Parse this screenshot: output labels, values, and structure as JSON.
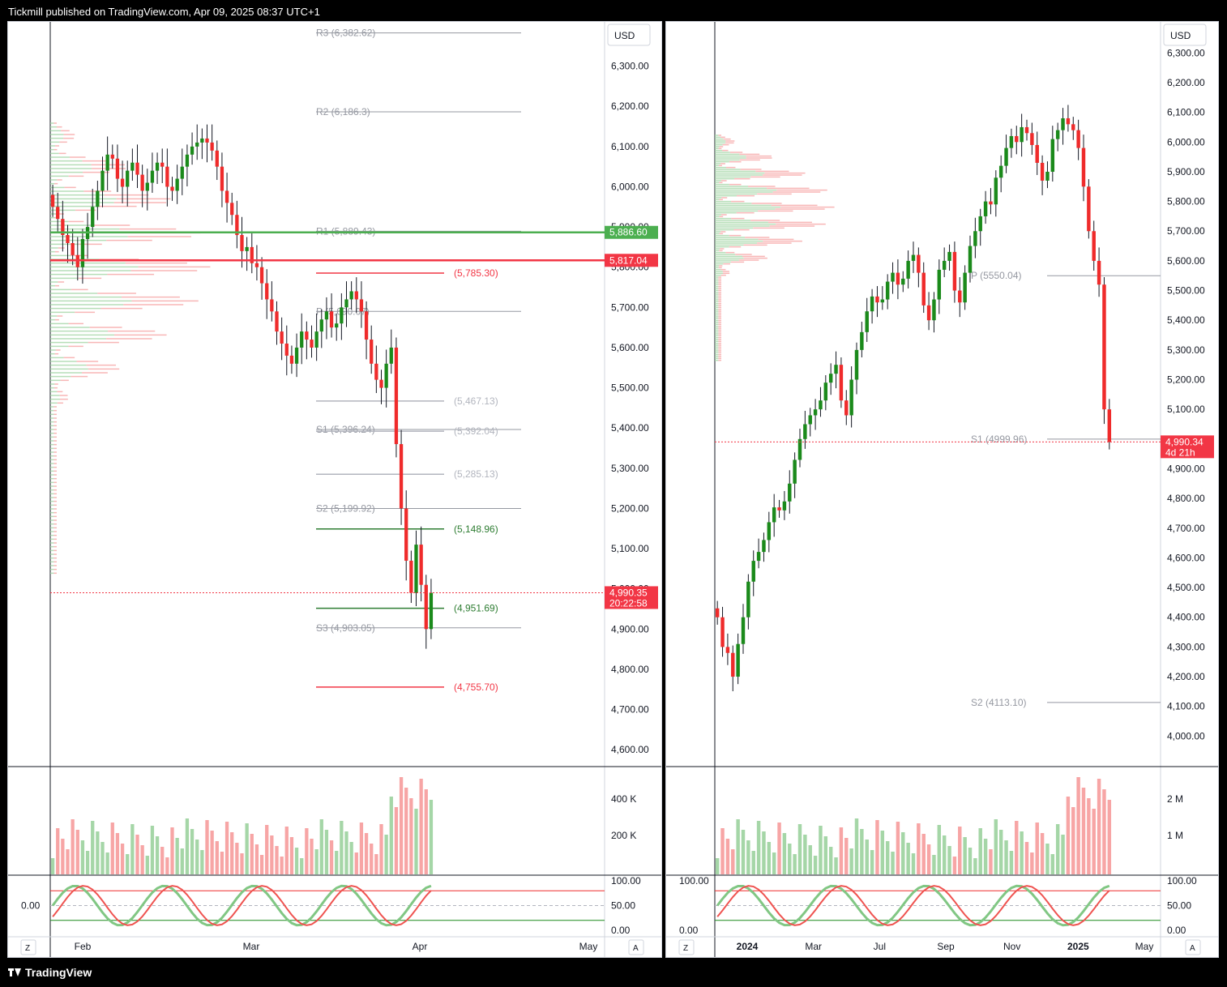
{
  "header": {
    "text": "Tickmill published on TradingView.com, Apr 09, 2025 08:37 UTC+1"
  },
  "footer": {
    "brand": "TradingView"
  },
  "colors": {
    "up": "#089981",
    "upCandle": "#1b8a1b",
    "down": "#f23645",
    "red": "#ef2b2b",
    "green": "#4caf50",
    "blue": "#2962ff",
    "grid": "#e0e3eb",
    "text": "#131722"
  },
  "chart_data": [
    {
      "type": "candlestick",
      "currency": "USD",
      "timeframe_labels": [
        "Feb",
        "Mar",
        "Apr",
        "May"
      ],
      "y_ticks": [
        "6,300.00",
        "6,200.00",
        "6,100.00",
        "6,000.00",
        "5,900.00",
        "5,800.00",
        "5,700.00",
        "5,600.00",
        "5,500.00",
        "5,400.00",
        "5,300.00",
        "5,200.00",
        "5,100.00",
        "5,000.00",
        "4,900.00",
        "4,800.00",
        "4,700.00",
        "4,600.00"
      ],
      "ylim": [
        4560,
        6400
      ],
      "price_badges": [
        {
          "value": "5,886.60",
          "price": 5886.6,
          "color": "#4caf50"
        },
        {
          "value": "5,817.04",
          "price": 5817.04,
          "color": "#f23645"
        },
        {
          "value": "4,990.35",
          "sub": "20:22:58",
          "price": 4990.35,
          "color": "#f23645"
        }
      ],
      "pivots": [
        {
          "label": "R3 (6,382.62)",
          "price": 6382.62
        },
        {
          "label": "R2 (6,186.3)",
          "price": 6186.3
        },
        {
          "label": "R1 (5,889.43)",
          "price": 5889.43
        },
        {
          "label": "P (5,690.07)",
          "price": 5690.07
        },
        {
          "label": "S1 (5,396.24)",
          "price": 5396.24
        },
        {
          "label": "S2 (5,199.92)",
          "price": 5199.92
        },
        {
          "label": "S3 (4,903.05)",
          "price": 4903.05
        }
      ],
      "levels": [
        {
          "label": "(5,785.30)",
          "price": 5785.3,
          "color": "#f23645"
        },
        {
          "label": "(5,467.13)",
          "price": 5467.13,
          "color": "#b2b5be"
        },
        {
          "label": "(5,392.04)",
          "price": 5392.04,
          "color": "#b2b5be"
        },
        {
          "label": "(5,285.13)",
          "price": 5285.13,
          "color": "#b2b5be"
        },
        {
          "label": "(5,148.96)",
          "price": 5148.96,
          "color": "#2e7d32"
        },
        {
          "label": "(4,951.69)",
          "price": 4951.69,
          "color": "#2e7d32"
        },
        {
          "label": "(4,755.70)",
          "price": 4755.7,
          "color": "#f23645"
        }
      ],
      "volume_ticks": [
        "400 K",
        "200 K"
      ],
      "osc_ticks": [
        "100.00",
        "50.00",
        "0.00"
      ],
      "osc_left_label": "0.00",
      "closes": [
        5950,
        5920,
        5880,
        5860,
        5830,
        5800,
        5870,
        5900,
        5950,
        5990,
        6040,
        6080,
        6070,
        6020,
        6000,
        6040,
        6060,
        6030,
        5990,
        6010,
        6040,
        6060,
        6050,
        6000,
        5990,
        6020,
        6050,
        6080,
        6100,
        6110,
        6120,
        6110,
        6090,
        6050,
        5990,
        5960,
        5930,
        5880,
        5840,
        5850,
        5810,
        5800,
        5760,
        5720,
        5690,
        5640,
        5610,
        5580,
        5560,
        5600,
        5640,
        5620,
        5600,
        5640,
        5670,
        5690,
        5650,
        5660,
        5700,
        5720,
        5740,
        5720,
        5690,
        5620,
        5560,
        5520,
        5500,
        5560,
        5600,
        5360,
        5200,
        5070,
        4990,
        5110,
        5010,
        4900,
        4990
      ]
    },
    {
      "type": "candlestick",
      "currency": "USD",
      "timeframe_labels": [
        "2024",
        "Mar",
        "Jul",
        "Sep",
        "Nov",
        "2025",
        "May"
      ],
      "y_ticks": [
        "6,300.00",
        "6,200.00",
        "6,100.00",
        "6,000.00",
        "5,900.00",
        "5,800.00",
        "5,700.00",
        "5,600.00",
        "5,500.00",
        "5,400.00",
        "5,300.00",
        "5,200.00",
        "5,100.00",
        "5,000.00",
        "4,900.00",
        "4,800.00",
        "4,700.00",
        "4,600.00",
        "4,500.00",
        "4,400.00",
        "4,300.00",
        "4,200.00",
        "4,100.00",
        "4,000.00"
      ],
      "ylim": [
        3900,
        6350
      ],
      "price_badges": [
        {
          "value": "4,990.34",
          "sub": "4d 21h",
          "price": 4990.34,
          "color": "#f23645"
        }
      ],
      "pivots": [
        {
          "label": "P (5550.04)",
          "price": 5550.04
        },
        {
          "label": "S1 (4999.96)",
          "price": 4999.96
        },
        {
          "label": "S2 (4113.10)",
          "price": 4113.1
        }
      ],
      "volume_ticks": [
        "2 M",
        "1 M"
      ],
      "osc_ticks": [
        "100.00",
        "50.00",
        "0.00"
      ],
      "osc_left_ticks": [
        "100.00",
        "0.00"
      ],
      "closes": [
        4400,
        4300,
        4280,
        4200,
        4310,
        4400,
        4520,
        4590,
        4620,
        4660,
        4720,
        4770,
        4760,
        4790,
        4850,
        4930,
        5000,
        5050,
        5080,
        5100,
        5130,
        5190,
        5220,
        5250,
        5130,
        5080,
        5200,
        5300,
        5360,
        5430,
        5480,
        5460,
        5470,
        5530,
        5560,
        5520,
        5540,
        5600,
        5620,
        5560,
        5450,
        5400,
        5470,
        5570,
        5600,
        5630,
        5500,
        5460,
        5560,
        5650,
        5700,
        5750,
        5800,
        5790,
        5880,
        5920,
        5980,
        6020,
        6000,
        6050,
        6030,
        5990,
        5930,
        5870,
        5900,
        6010,
        6040,
        6080,
        6060,
        6040,
        5980,
        5850,
        5700,
        5600,
        5520,
        5100,
        4990
      ]
    }
  ]
}
